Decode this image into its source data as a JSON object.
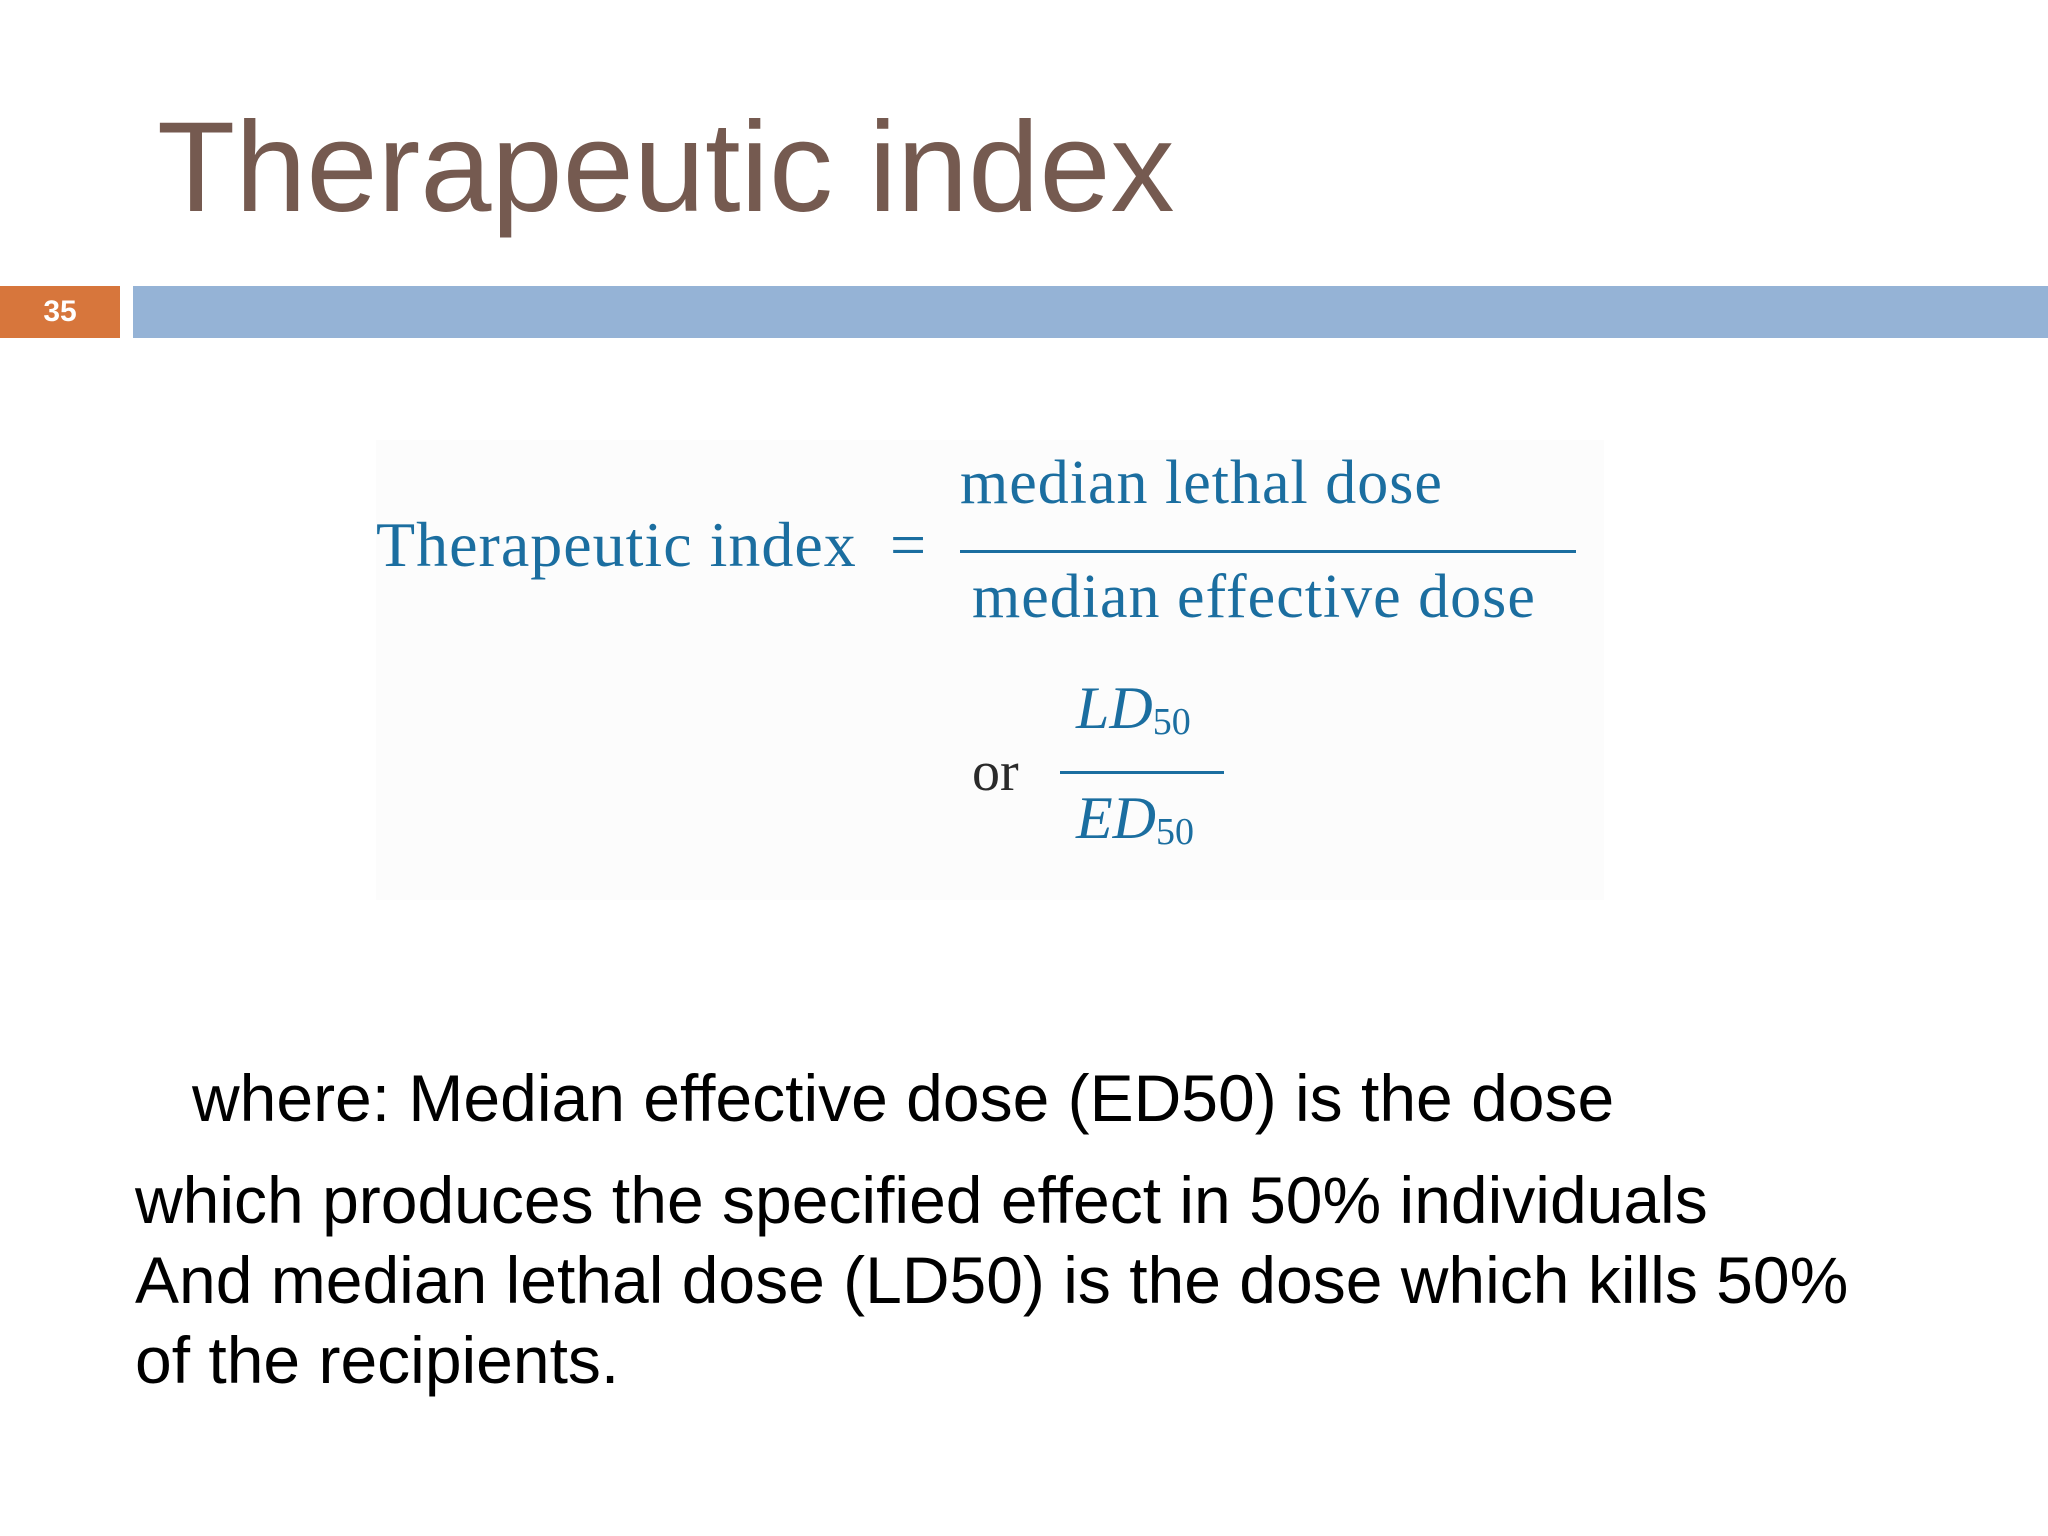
{
  "slide": {
    "title": "Therapeutic index",
    "number": "35"
  },
  "formula": {
    "label": "Therapeutic  index",
    "equals": "=",
    "numerator": "median  lethal  dose",
    "denominator": "median  effective  dose",
    "or": "or",
    "ld": "LD",
    "ld_sub": "50",
    "ed": "ED",
    "ed_sub": "50"
  },
  "body": {
    "line1": "where: Median effective dose (ED50) is the dose",
    "line2": "which produces the specified effect in 50% individuals",
    "line3": "And median lethal dose (LD50) is the dose which kills 50%",
    "line4": "of the recipients."
  },
  "colors": {
    "title": "#755a50",
    "slide_number_bg": "#d7763c",
    "title_bar": "#95b3d6",
    "formula_text": "#1b6ea0"
  }
}
